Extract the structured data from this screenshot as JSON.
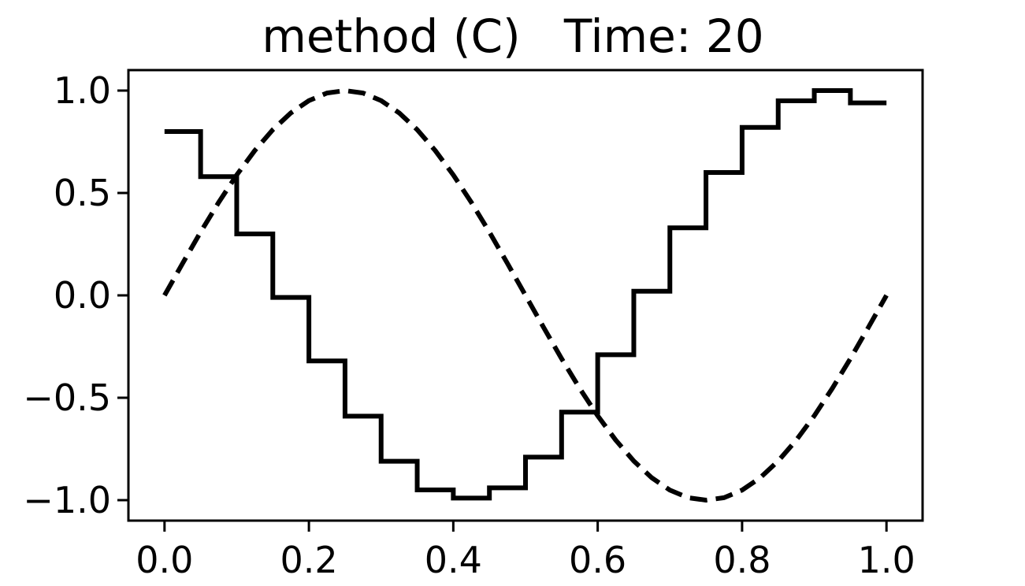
{
  "chart_data": {
    "type": "line",
    "title": "method (C)   Time: 20",
    "xlabel": "",
    "ylabel": "",
    "xlim": [
      -0.05,
      1.05
    ],
    "ylim": [
      -1.1,
      1.1
    ],
    "grid": false,
    "legend": "none",
    "xticks": [
      {
        "value": 0.0,
        "label": "0.0"
      },
      {
        "value": 0.2,
        "label": "0.2"
      },
      {
        "value": 0.4,
        "label": "0.4"
      },
      {
        "value": 0.6,
        "label": "0.6"
      },
      {
        "value": 0.8,
        "label": "0.8"
      },
      {
        "value": 1.0,
        "label": "1.0"
      }
    ],
    "yticks": [
      {
        "value": 1.0,
        "label": "1.0"
      },
      {
        "value": 0.5,
        "label": "0.5"
      },
      {
        "value": 0.0,
        "label": "0.0"
      },
      {
        "value": -0.5,
        "label": "−0.5"
      },
      {
        "value": -1.0,
        "label": "−1.0"
      }
    ],
    "series": [
      {
        "style": "dashed",
        "color": "#000000",
        "x": [
          0.0,
          0.025,
          0.05,
          0.075,
          0.1,
          0.125,
          0.15,
          0.175,
          0.2,
          0.225,
          0.25,
          0.275,
          0.3,
          0.325,
          0.35,
          0.375,
          0.4,
          0.425,
          0.45,
          0.475,
          0.5,
          0.525,
          0.55,
          0.575,
          0.6,
          0.625,
          0.65,
          0.675,
          0.7,
          0.725,
          0.75,
          0.775,
          0.8,
          0.825,
          0.85,
          0.875,
          0.9,
          0.925,
          0.95,
          0.975,
          1.0
        ],
        "y": [
          0.0,
          0.156,
          0.309,
          0.454,
          0.588,
          0.707,
          0.809,
          0.891,
          0.951,
          0.988,
          1.0,
          0.988,
          0.951,
          0.891,
          0.809,
          0.707,
          0.588,
          0.454,
          0.309,
          0.156,
          0.0,
          -0.156,
          -0.309,
          -0.454,
          -0.588,
          -0.707,
          -0.809,
          -0.891,
          -0.951,
          -0.988,
          -1.0,
          -0.988,
          -0.951,
          -0.891,
          -0.809,
          -0.707,
          -0.588,
          -0.454,
          -0.309,
          -0.156,
          0.0
        ]
      },
      {
        "style": "solid-step",
        "color": "#000000",
        "step_edges": [
          0.0,
          0.05,
          0.1,
          0.15,
          0.2,
          0.25,
          0.3,
          0.35,
          0.4,
          0.45,
          0.5,
          0.55,
          0.6,
          0.65,
          0.7,
          0.75,
          0.8,
          0.85,
          0.9,
          0.95,
          1.0
        ],
        "step_values": [
          0.8,
          0.58,
          0.3,
          -0.01,
          -0.32,
          -0.59,
          -0.81,
          -0.95,
          -0.99,
          -0.94,
          -0.79,
          -0.57,
          -0.29,
          0.02,
          0.33,
          0.6,
          0.82,
          0.95,
          1.0,
          0.94
        ]
      }
    ]
  }
}
